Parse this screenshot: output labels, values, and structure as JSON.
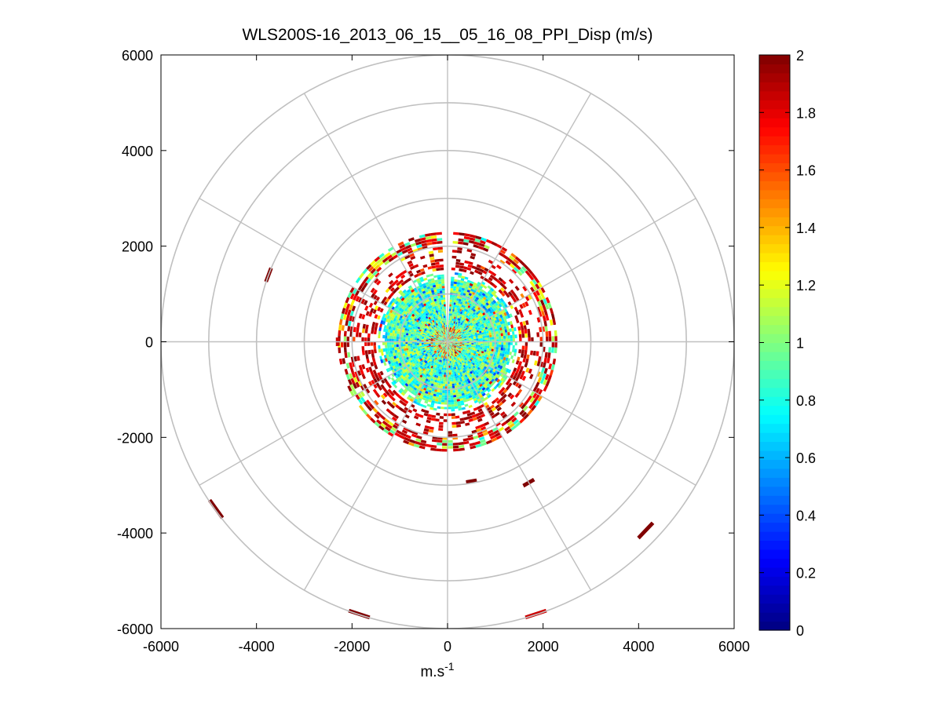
{
  "chart_data": {
    "type": "heatmap",
    "subtype": "polar PPI scan",
    "title": "WLS200S-16_2013_06_15__05_16_08_PPI_Disp (m/s)",
    "xlabel_base": "m.s",
    "xlabel_sup": "-1",
    "ylabel": "",
    "xlim": [
      -6000,
      6000
    ],
    "ylim": [
      -6000,
      6000
    ],
    "x_ticks": [
      "-6000",
      "-4000",
      "-2000",
      "0",
      "2000",
      "4000",
      "6000"
    ],
    "y_ticks": [
      "6000",
      "4000",
      "2000",
      "0",
      "-2000",
      "-4000",
      "-6000"
    ],
    "polar_grid": {
      "range_rings": [
        1000,
        2000,
        3000,
        4000,
        5000,
        6000
      ],
      "spokes_deg_step": 30
    },
    "colorbar": {
      "colormap": "jet",
      "clim": [
        0,
        2
      ],
      "ticks": [
        "0",
        "0.2",
        "0.4",
        "0.6",
        "0.8",
        "1",
        "1.2",
        "1.4",
        "1.6",
        "1.8",
        "2"
      ]
    },
    "data_summary": {
      "dense_core_radius_m": 1450,
      "core_value_range": [
        0.6,
        1.2
      ],
      "outer_rings_radius_m": [
        1500,
        2300
      ],
      "outer_ring_values": [
        1.2,
        2.0
      ]
    },
    "isolated_patches": [
      {
        "x": -3750,
        "y": 1400,
        "value": 2.0
      },
      {
        "x": -4850,
        "y": -3500,
        "value": 2.0
      },
      {
        "x": -1850,
        "y": -5700,
        "value": 2.0
      },
      {
        "x": 1850,
        "y": -5700,
        "value": 1.85
      },
      {
        "x": 4150,
        "y": -3950,
        "value": 2.0
      },
      {
        "x": 500,
        "y": -2920,
        "value": 2.0
      },
      {
        "x": 1700,
        "y": -2950,
        "value": 2.0
      },
      {
        "x": -2300,
        "y": 0,
        "value": 1.85
      }
    ],
    "grid": true
  }
}
